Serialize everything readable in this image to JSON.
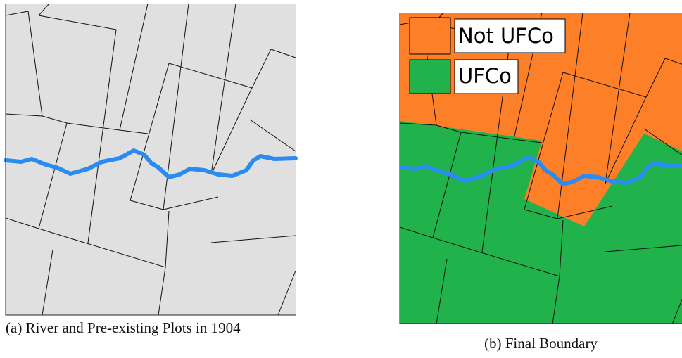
{
  "panels": [
    {
      "caption": "(a) River and Pre-existing Plots in 1904"
    },
    {
      "caption": "(b) Final Boundary",
      "legend": [
        {
          "label": "Not UFCo",
          "color": "#fd7f28"
        },
        {
          "label": "UFCo",
          "color": "#22b24c"
        }
      ]
    }
  ]
}
